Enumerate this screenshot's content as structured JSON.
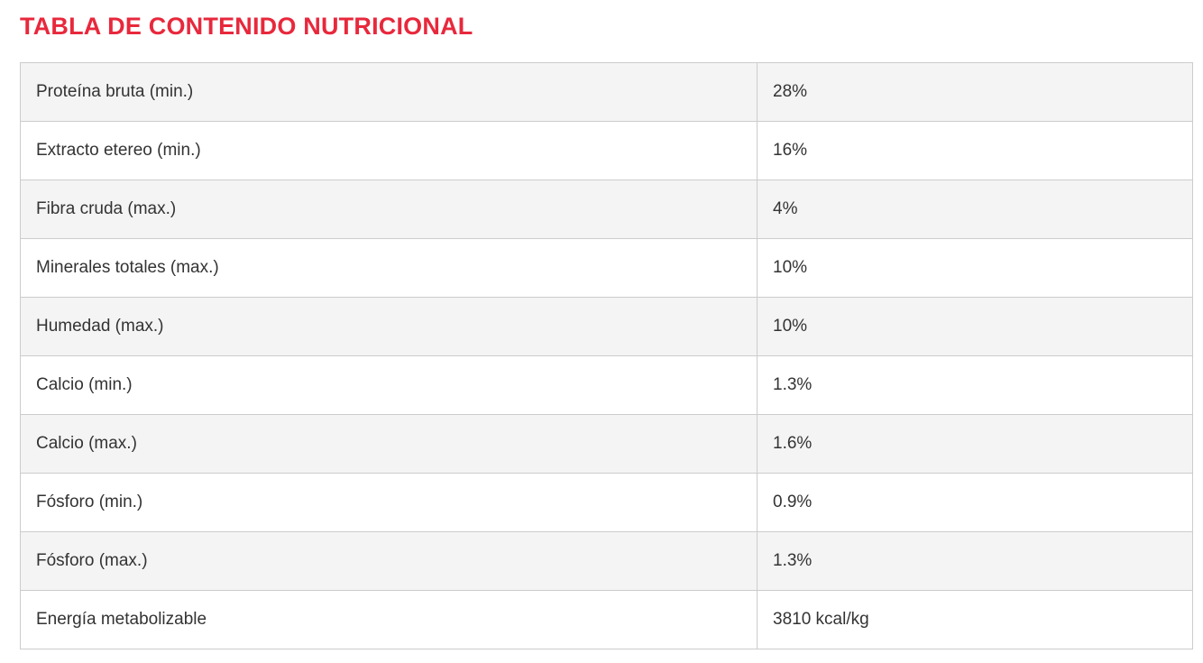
{
  "title": "TABLA DE CONTENIDO NUTRICIONAL",
  "colors": {
    "title": "#e8283c",
    "row_odd": "#f4f4f4",
    "row_even": "#ffffff",
    "border": "#cccccc",
    "text": "#333333"
  },
  "rows": [
    {
      "name": "Proteína bruta (min.)",
      "value": "28%"
    },
    {
      "name": "Extracto etereo (min.)",
      "value": "16%"
    },
    {
      "name": "Fibra cruda (max.)",
      "value": "4%"
    },
    {
      "name": "Minerales totales (max.)",
      "value": "10%"
    },
    {
      "name": "Humedad (max.)",
      "value": "10%"
    },
    {
      "name": "Calcio (min.)",
      "value": "1.3%"
    },
    {
      "name": "Calcio (max.)",
      "value": "1.6%"
    },
    {
      "name": "Fósforo (min.)",
      "value": "0.9%"
    },
    {
      "name": "Fósforo (max.)",
      "value": "1.3%"
    },
    {
      "name": "Energía metabolizable",
      "value": "3810 kcal/kg"
    }
  ]
}
